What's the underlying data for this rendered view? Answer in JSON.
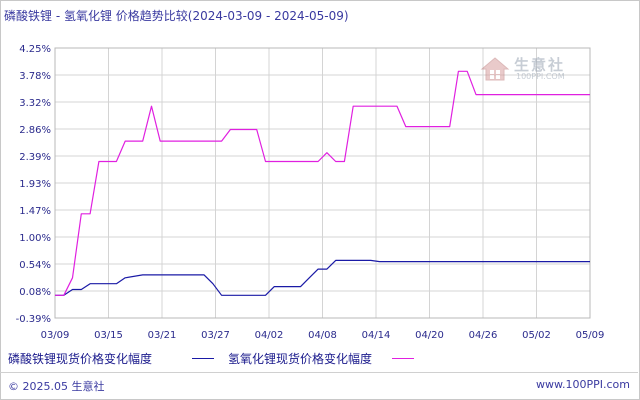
{
  "chart_data": {
    "type": "line",
    "title": "磷酸铁锂 - 氢氧化锂 价格趋势比较(2024-03-09 - 2024-05-09)",
    "xlabel": "",
    "ylabel": "",
    "x_range": [
      "2024-03-09",
      "2024-05-09"
    ],
    "x_tick_labels": [
      "03/09",
      "03/15",
      "03/21",
      "03/27",
      "04/02",
      "04/08",
      "04/14",
      "04/20",
      "04/26",
      "05/02",
      "05/09"
    ],
    "y_tick_labels": [
      "4.25%",
      "3.78%",
      "3.32%",
      "2.86%",
      "2.39%",
      "1.93%",
      "1.47%",
      "1.00%",
      "0.54%",
      "0.08%",
      "-0.39%"
    ],
    "ylim": [
      -0.39,
      4.25
    ],
    "grid": true,
    "legend_position": "bottom",
    "series": [
      {
        "name": "磷酸铁锂现货价格变化幅度",
        "color": "#1a1aa6",
        "points": [
          [
            "2024-03-09",
            0.0
          ],
          [
            "2024-03-10",
            0.0
          ],
          [
            "2024-03-11",
            0.1
          ],
          [
            "2024-03-12",
            0.1
          ],
          [
            "2024-03-13",
            0.2
          ],
          [
            "2024-03-16",
            0.2
          ],
          [
            "2024-03-17",
            0.3
          ],
          [
            "2024-03-19",
            0.35
          ],
          [
            "2024-03-26",
            0.35
          ],
          [
            "2024-03-27",
            0.2
          ],
          [
            "2024-03-28",
            0.0
          ],
          [
            "2024-04-02",
            0.0
          ],
          [
            "2024-04-03",
            0.15
          ],
          [
            "2024-04-06",
            0.15
          ],
          [
            "2024-04-07",
            0.3
          ],
          [
            "2024-04-08",
            0.45
          ],
          [
            "2024-04-09",
            0.45
          ],
          [
            "2024-04-10",
            0.6
          ],
          [
            "2024-04-14",
            0.6
          ],
          [
            "2024-04-15",
            0.58
          ],
          [
            "2024-05-09",
            0.58
          ]
        ]
      },
      {
        "name": "氢氧化锂现货价格变化幅度",
        "color": "#e020e0",
        "points": [
          [
            "2024-03-09",
            0.0
          ],
          [
            "2024-03-10",
            0.0
          ],
          [
            "2024-03-11",
            0.3
          ],
          [
            "2024-03-12",
            1.4
          ],
          [
            "2024-03-13",
            1.4
          ],
          [
            "2024-03-14",
            2.3
          ],
          [
            "2024-03-15",
            2.3
          ],
          [
            "2024-03-16",
            2.3
          ],
          [
            "2024-03-17",
            2.65
          ],
          [
            "2024-03-19",
            2.65
          ],
          [
            "2024-03-20",
            3.25
          ],
          [
            "2024-03-21",
            2.65
          ],
          [
            "2024-03-28",
            2.65
          ],
          [
            "2024-03-29",
            2.85
          ],
          [
            "2024-04-01",
            2.85
          ],
          [
            "2024-04-02",
            2.3
          ],
          [
            "2024-04-08",
            2.3
          ],
          [
            "2024-04-09",
            2.45
          ],
          [
            "2024-04-10",
            2.3
          ],
          [
            "2024-04-11",
            2.3
          ],
          [
            "2024-04-12",
            3.25
          ],
          [
            "2024-04-17",
            3.25
          ],
          [
            "2024-04-18",
            2.9
          ],
          [
            "2024-04-23",
            2.9
          ],
          [
            "2024-04-24",
            3.85
          ],
          [
            "2024-04-25",
            3.85
          ],
          [
            "2024-04-26",
            3.45
          ],
          [
            "2024-05-09",
            3.45
          ]
        ]
      }
    ]
  },
  "watermark": {
    "text": "生意社",
    "sub": "100PPI.COM"
  },
  "footer": {
    "left": "© 2025.05 生意社",
    "right": "www.100PPI.com"
  }
}
